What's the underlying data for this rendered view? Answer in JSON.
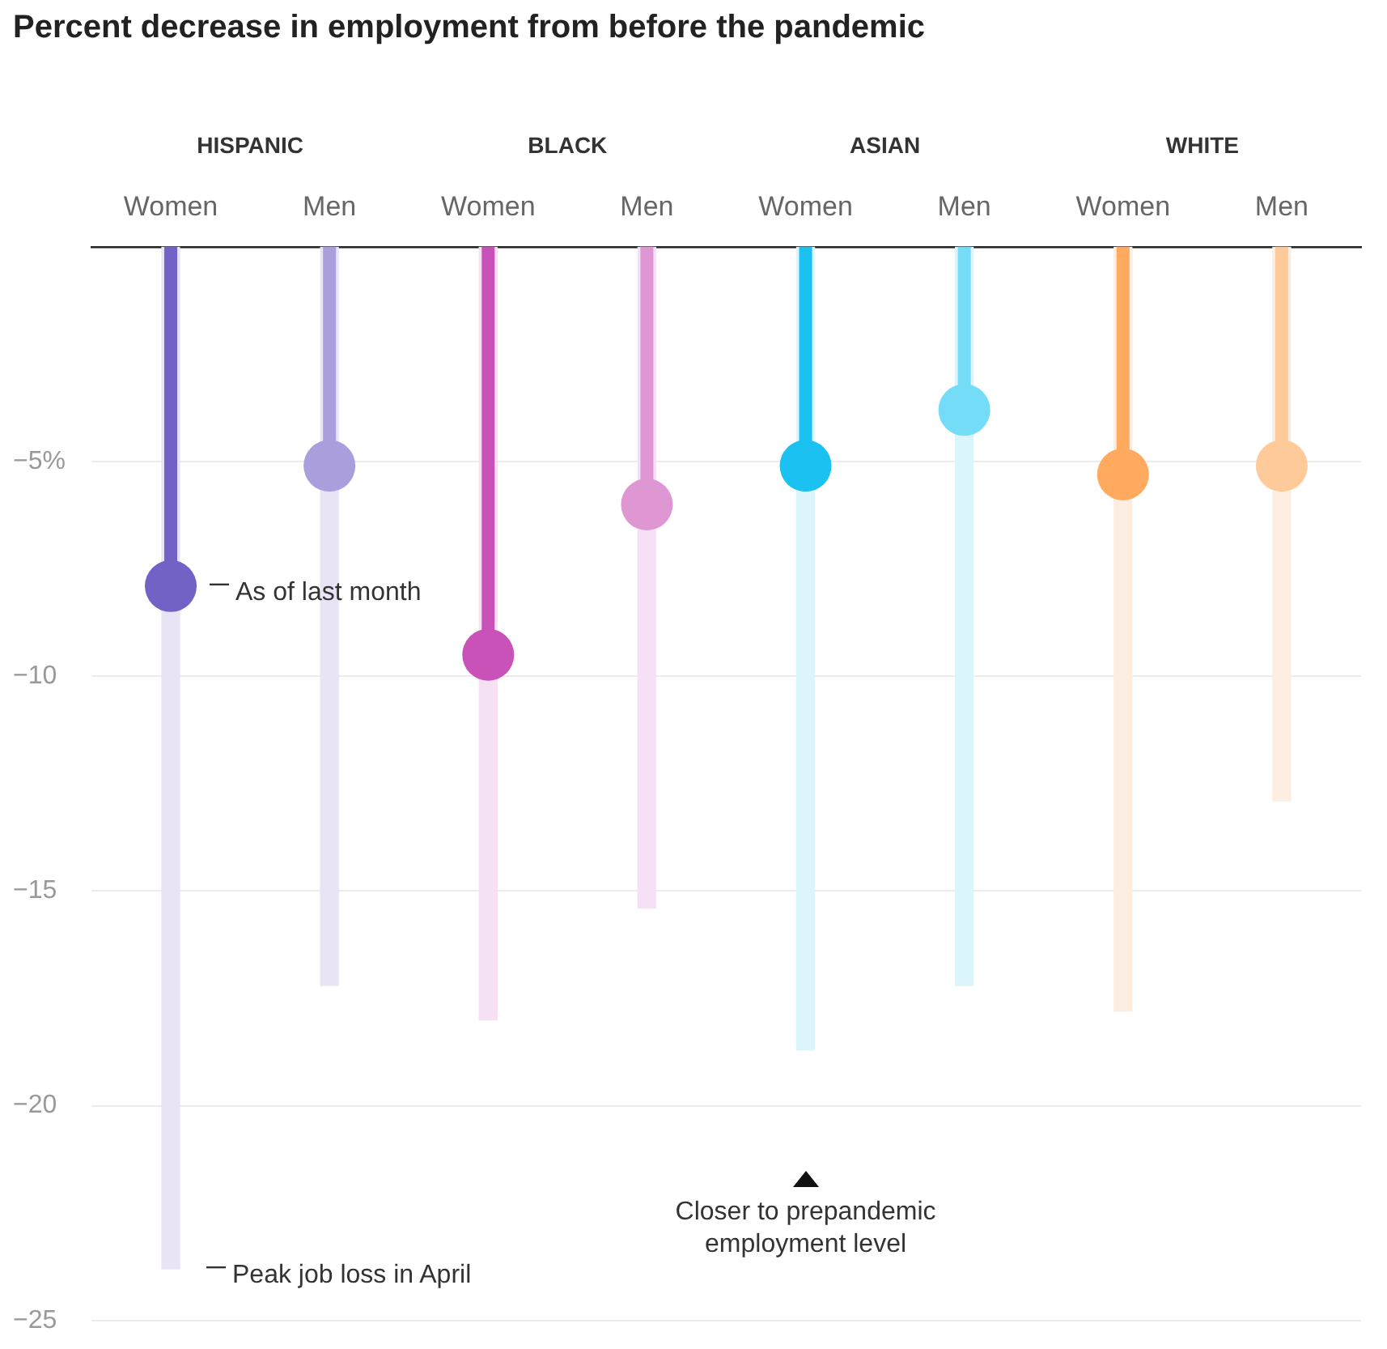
{
  "chart_data": {
    "type": "lollipop",
    "title": "Percent decrease in employment from before the pandemic",
    "categories": [
      "Women",
      "Men",
      "Women",
      "Men",
      "Women",
      "Men",
      "Women",
      "Men"
    ],
    "series": [
      {
        "name": "Peak job loss in April",
        "type": "bar",
        "colors": [
          "#e8e4f5",
          "#e8e4f5",
          "#f6e0f3",
          "#f6e0f3",
          "#dcf4fb",
          "#dcf4fb",
          "#fdeee1",
          "#fdeee1"
        ],
        "values": [
          -23.8,
          -17.2,
          -18.0,
          -15.4,
          -18.7,
          -17.2,
          -17.8,
          -12.9
        ]
      },
      {
        "name": "As of last month",
        "colors": [
          "#7262c6",
          "#aa9fdc",
          "#c952b8",
          "#df97d4",
          "#1bc1f0",
          "#75dcf7",
          "#ffaa5e",
          "#ffca9a"
        ],
        "values": [
          -7.9,
          -5.1,
          -9.5,
          -6.0,
          -5.1,
          -3.8,
          -5.3,
          -5.1
        ]
      }
    ],
    "ylim": [
      -25,
      0
    ],
    "yticks": [
      {
        "value": -5,
        "label": "−5%"
      },
      {
        "value": -10,
        "label": "−10"
      },
      {
        "value": -15,
        "label": "−15"
      },
      {
        "value": -20,
        "label": "−20"
      },
      {
        "value": -25,
        "label": "−25"
      }
    ],
    "grid": "y",
    "legend": false,
    "annotations": [
      "HISPANIC",
      "BLACK",
      "ASIAN",
      "WHITE",
      "Closer to prepandemic employment level"
    ]
  }
}
